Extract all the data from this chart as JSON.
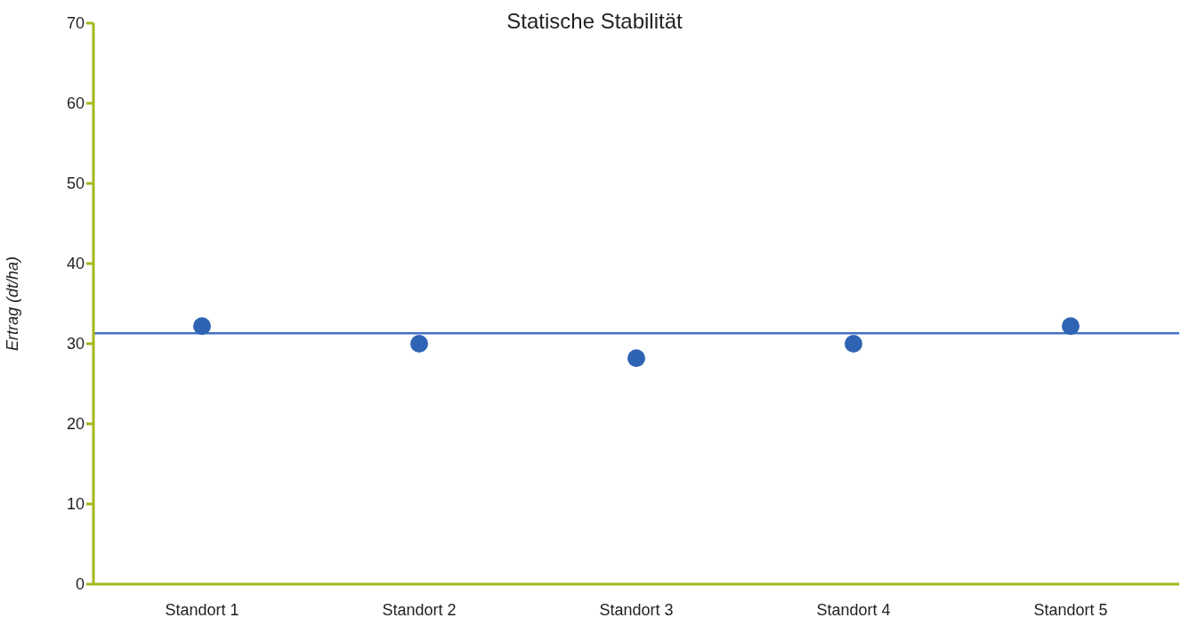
{
  "chart_data": {
    "type": "scatter",
    "title": "Statische Stabilität",
    "ylabel": "Ertrag (dt/ha)",
    "categories": [
      "Standort 1",
      "Standort 2",
      "Standort 3",
      "Standort 4",
      "Standort 5"
    ],
    "values": [
      32.2,
      30,
      28.2,
      30,
      32.2
    ],
    "color": "#2f64b4",
    "marker": "circle",
    "ylim": [
      0,
      70
    ],
    "yticks": [
      0,
      10,
      20,
      30,
      40,
      50,
      60,
      70
    ],
    "grid": false,
    "legend": false,
    "ref_lines": [
      {
        "axis": "y",
        "value": 31.3,
        "color": "#4472c4",
        "line_style": "solid"
      }
    ]
  }
}
